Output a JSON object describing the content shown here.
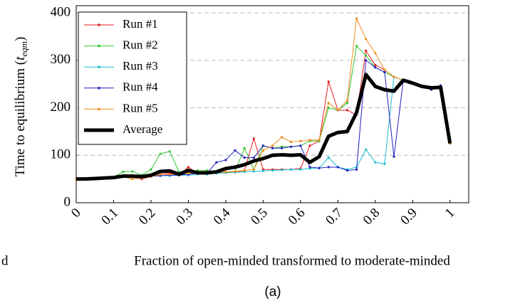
{
  "chart_data": {
    "type": "line",
    "ylabel": [
      "Time to equilibrium (",
      "t",
      "eqm",
      ")"
    ],
    "xlabel": "Fraction of open-minded transformed to moderate-minded",
    "caption": "(a)",
    "left_fragment": "d",
    "x": [
      0,
      0.025,
      0.05,
      0.075,
      0.1,
      0.125,
      0.15,
      0.175,
      0.2,
      0.225,
      0.25,
      0.275,
      0.3,
      0.325,
      0.35,
      0.375,
      0.4,
      0.425,
      0.45,
      0.475,
      0.5,
      0.525,
      0.55,
      0.575,
      0.6,
      0.625,
      0.65,
      0.675,
      0.7,
      0.725,
      0.75,
      0.775,
      0.8,
      0.825,
      0.85,
      0.875,
      0.9,
      0.925,
      0.95,
      0.975,
      1
    ],
    "series": [
      {
        "name": "Run #1",
        "color": "#e41a1c",
        "values": [
          50,
          50,
          51,
          52,
          53,
          57,
          55,
          50,
          55,
          60,
          62,
          58,
          75,
          62,
          63,
          63,
          65,
          64,
          68,
          135,
          70,
          70,
          70,
          70,
          72,
          120,
          130,
          255,
          195,
          195,
          185,
          320,
          290,
          280,
          265,
          258,
          252,
          245,
          242,
          243,
          125
        ]
      },
      {
        "name": "Run #2",
        "color": "#33c433",
        "values": [
          50,
          50,
          51,
          52,
          54,
          65,
          66,
          58,
          70,
          103,
          108,
          65,
          65,
          68,
          68,
          65,
          65,
          66,
          115,
          70,
          120,
          115,
          118,
          118,
          120,
          130,
          130,
          200,
          195,
          210,
          330,
          310,
          285,
          275,
          265,
          258,
          252,
          245,
          242,
          243,
          125
        ]
      },
      {
        "name": "Run #3",
        "color": "#17becf",
        "values": [
          50,
          50,
          51,
          52,
          53,
          55,
          55,
          55,
          56,
          57,
          57,
          58,
          58,
          60,
          60,
          62,
          63,
          64,
          65,
          66,
          67,
          68,
          69,
          70,
          70,
          72,
          73,
          95,
          75,
          70,
          75,
          112,
          85,
          82,
          265,
          258,
          252,
          245,
          240,
          245,
          125
        ]
      },
      {
        "name": "Run #4",
        "color": "#1f1fbf",
        "values": [
          50,
          50,
          51,
          52,
          53,
          55,
          55,
          55,
          56,
          57,
          58,
          58,
          60,
          62,
          62,
          85,
          90,
          110,
          95,
          95,
          120,
          115,
          115,
          118,
          120,
          75,
          73,
          75,
          75,
          68,
          70,
          300,
          285,
          275,
          97,
          258,
          252,
          245,
          238,
          247,
          125
        ]
      },
      {
        "name": "Run #5",
        "color": "#f28c1a",
        "values": [
          50,
          50,
          51,
          52,
          53,
          55,
          50,
          52,
          55,
          60,
          60,
          60,
          62,
          63,
          63,
          65,
          65,
          66,
          68,
          70,
          110,
          120,
          138,
          128,
          130,
          132,
          132,
          210,
          195,
          215,
          388,
          345,
          315,
          280,
          265,
          258,
          252,
          245,
          242,
          240,
          125
        ]
      },
      {
        "name": "Average",
        "color": "#000000",
        "values": [
          50,
          50,
          51,
          52,
          53,
          56,
          56,
          55,
          58,
          66,
          67,
          60,
          68,
          63,
          63,
          65,
          72,
          75,
          80,
          88,
          93,
          100,
          101,
          100,
          101,
          85,
          97,
          140,
          148,
          150,
          190,
          270,
          245,
          238,
          235,
          258,
          252,
          245,
          242,
          243,
          125
        ]
      }
    ],
    "xlim": [
      0,
      1.05
    ],
    "ylim": [
      0,
      415
    ],
    "xticks": [
      0,
      0.1,
      0.2,
      0.3,
      0.4,
      0.5,
      0.6,
      0.7,
      0.8,
      0.9,
      1
    ],
    "yticks": [
      0,
      100,
      200,
      300,
      400
    ],
    "grid": true,
    "legend": "upper left"
  }
}
